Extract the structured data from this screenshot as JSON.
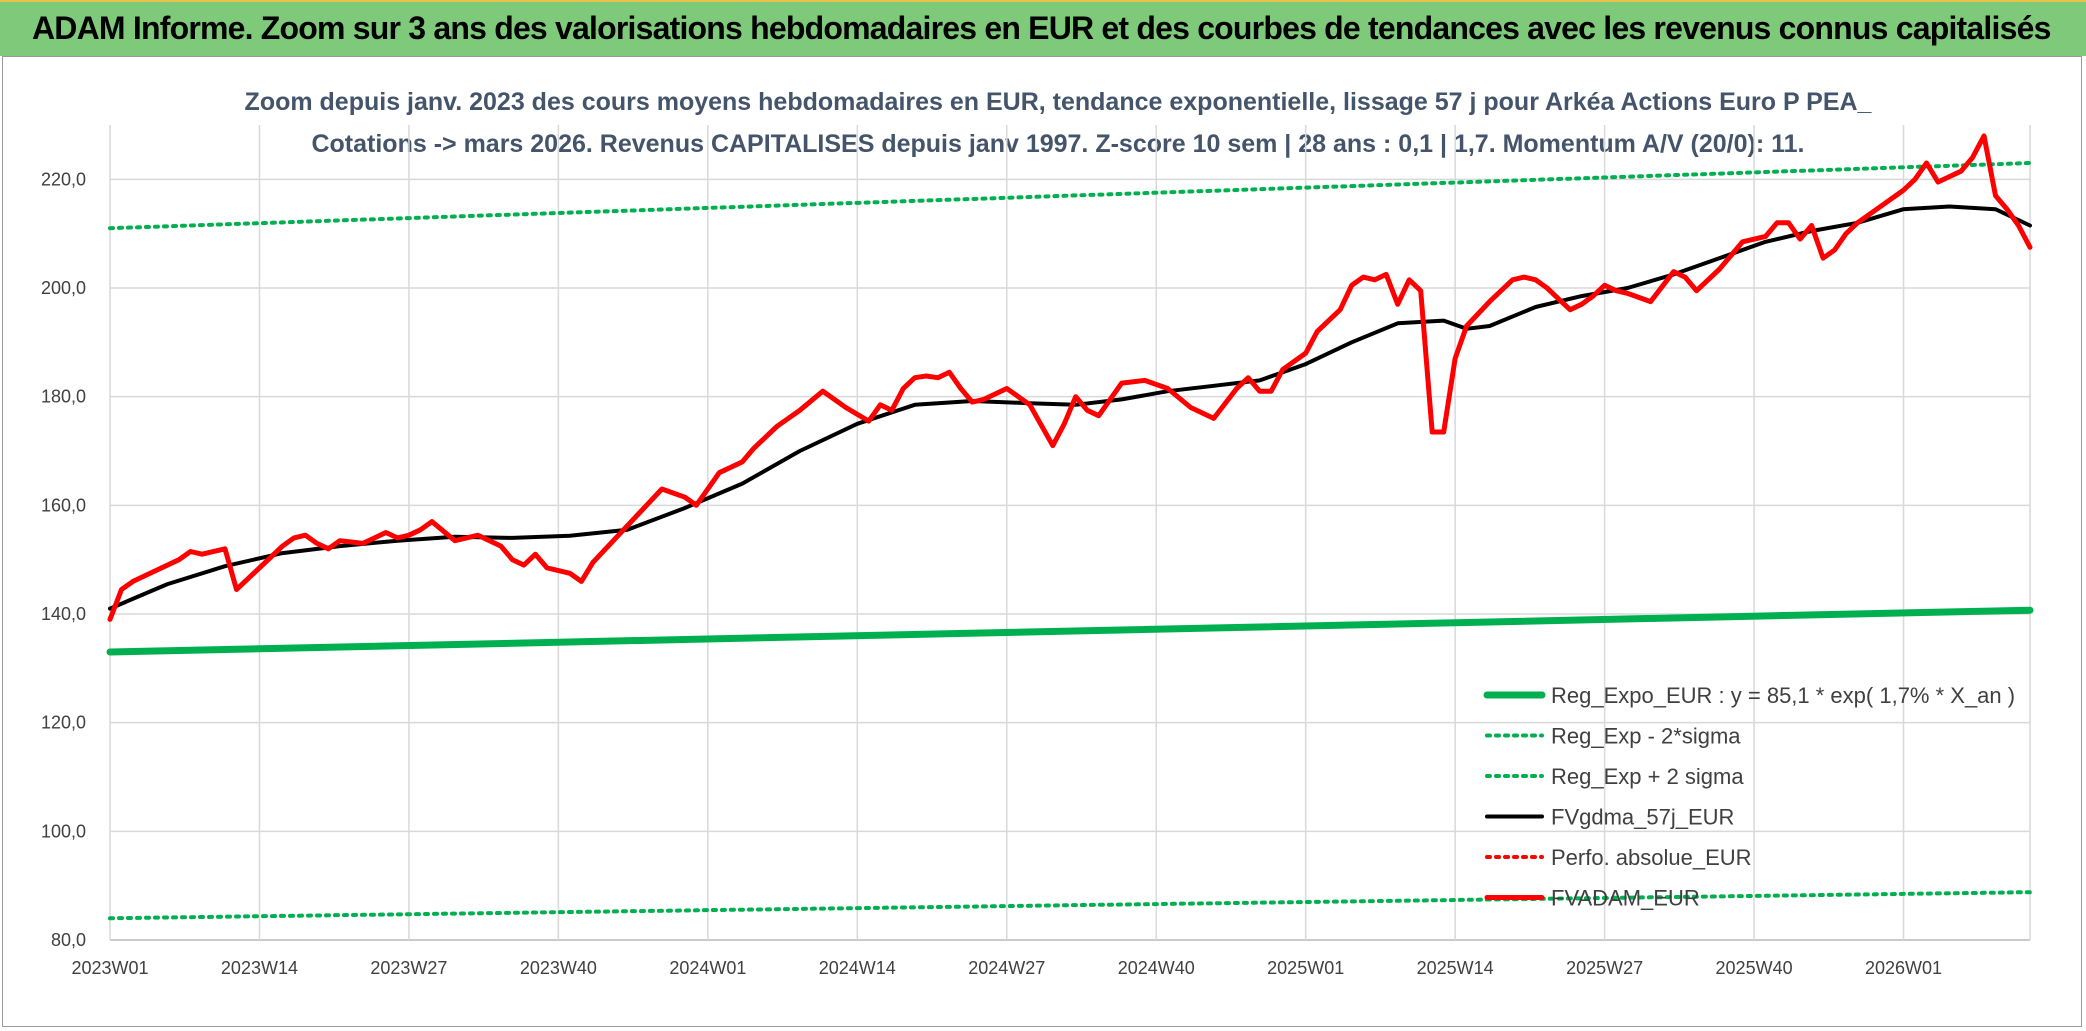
{
  "header": {
    "banner": "ADAM Informe. Zoom sur 3 ans des valorisations hebdomadaires en EUR et des courbes de tendances avec les revenus connus capitalisés"
  },
  "colors": {
    "banner_bg": "#7fc97a",
    "reg_green": "#00b050",
    "red": "#ff0000",
    "black": "#000000",
    "title_text": "#44546a"
  },
  "chart_data": {
    "type": "line",
    "title_line1": "Zoom depuis janv. 2023 des cours moyens hebdomadaires en EUR, tendance exponentielle, lissage 57 j pour Arkéa Actions Euro P PEA_",
    "title_line2": "Cotations -> mars 2026. Revenus CAPITALISES depuis janv 1997. Z-score 10 sem | 28 ans : 0,1 | 1,7. Momentum A/V (20/0): 11.",
    "ylim": [
      80,
      230
    ],
    "yticks": [
      80,
      100,
      120,
      140,
      160,
      180,
      200,
      220
    ],
    "ytick_labels": [
      "80,0",
      "100,0",
      "120,0",
      "140,0",
      "160,0",
      "180,0",
      "200,0",
      "220,0"
    ],
    "x_count": 168,
    "xtick_index": [
      0,
      13,
      26,
      39,
      52,
      65,
      78,
      91,
      104,
      117,
      130,
      143,
      156
    ],
    "xtick_labels": [
      "2023W01",
      "2023W14",
      "2023W27",
      "2023W40",
      "2024W01",
      "2024W14",
      "2024W27",
      "2024W40",
      "2025W01",
      "2025W14",
      "2025W27",
      "2025W40",
      "2026W01"
    ],
    "series": [
      {
        "name": "Reg_Expo_EUR : y = 85,1 * exp( 1,7% *  X_an )",
        "style": "solid-thick",
        "color": "#00b050",
        "x": [
          0,
          167
        ],
        "values": [
          133.0,
          140.7
        ]
      },
      {
        "name": "Reg_Exp - 2*sigma",
        "style": "dotted",
        "color": "#00b050",
        "x": [
          0,
          167
        ],
        "values": [
          84.0,
          88.8
        ]
      },
      {
        "name": "Reg_Exp + 2 sigma",
        "style": "dotted",
        "color": "#00b050",
        "x": [
          0,
          167
        ],
        "values": [
          211.0,
          223.0
        ]
      },
      {
        "name": "FVgdma_57j_EUR",
        "style": "solid",
        "color": "#000000",
        "x": [
          0,
          5,
          10,
          15,
          20,
          25,
          30,
          35,
          40,
          45,
          50,
          55,
          60,
          65,
          70,
          75,
          80,
          84,
          88,
          92,
          96,
          100,
          104,
          108,
          112,
          116,
          118,
          120,
          124,
          128,
          132,
          136,
          140,
          144,
          148,
          152,
          156,
          160,
          164,
          167
        ],
        "values": [
          141,
          145.5,
          148.8,
          151.2,
          152.5,
          153.5,
          154.2,
          154.0,
          154.4,
          155.5,
          159.5,
          164.0,
          170.0,
          175.0,
          178.5,
          179.2,
          178.8,
          178.5,
          179.5,
          181.0,
          182.0,
          183.0,
          186.0,
          190.0,
          193.5,
          194.0,
          192.5,
          193.0,
          196.5,
          198.5,
          200.0,
          202.5,
          205.5,
          208.5,
          210.5,
          212.0,
          214.5,
          215.0,
          214.5,
          211.5
        ]
      },
      {
        "name": "Perfo. absolue_EUR",
        "style": "dotted",
        "color": "#ff0000",
        "x": [],
        "values": []
      },
      {
        "name": "FVADAM_EUR",
        "style": "solid-thick",
        "color": "#ff0000",
        "x": [
          0,
          1,
          2,
          4,
          6,
          7,
          8,
          10,
          11,
          12,
          14,
          15,
          16,
          17,
          18,
          19,
          20,
          22,
          24,
          25,
          26,
          27,
          28,
          30,
          32,
          34,
          35,
          36,
          37,
          38,
          40,
          41,
          42,
          44,
          46,
          48,
          50,
          51,
          53,
          55,
          56,
          58,
          60,
          62,
          64,
          66,
          67,
          68,
          69,
          70,
          71,
          72,
          73,
          74,
          75,
          76,
          78,
          80,
          82,
          83,
          84,
          85,
          86,
          88,
          90,
          92,
          94,
          96,
          98,
          99,
          100,
          101,
          102,
          104,
          105,
          106,
          107,
          108,
          109,
          110,
          111,
          112,
          113,
          114,
          115,
          116,
          117,
          118,
          120,
          122,
          123,
          124,
          125,
          126,
          127,
          128,
          129,
          130,
          131,
          132,
          134,
          136,
          137,
          138,
          140,
          142,
          144,
          145,
          146,
          147,
          148,
          149,
          150,
          151,
          152,
          154,
          156,
          157,
          158,
          159,
          160,
          161,
          162,
          163,
          164,
          165,
          166,
          167
        ],
        "values": [
          139,
          144.5,
          146,
          148,
          150,
          151.5,
          151,
          152,
          144.5,
          146.5,
          150.5,
          152.5,
          154,
          154.5,
          153,
          152,
          153.5,
          153,
          155,
          154,
          154.5,
          155.5,
          157,
          153.5,
          154.5,
          152.5,
          150,
          149,
          151,
          148.5,
          147.5,
          146,
          149.5,
          154,
          158.5,
          163,
          161.5,
          160,
          166,
          168,
          170.5,
          174.5,
          177.5,
          181,
          178,
          175.5,
          178.5,
          177.5,
          181.5,
          183.5,
          183.8,
          183.5,
          184.5,
          181.5,
          179,
          179.5,
          181.5,
          178.5,
          171,
          175,
          180,
          177.5,
          176.5,
          182.5,
          183,
          181.5,
          178,
          176,
          181.5,
          183.5,
          181,
          181,
          185,
          188,
          192,
          194,
          196,
          200.5,
          202,
          201.5,
          202.5,
          197,
          201.5,
          199.5,
          173.5,
          173.5,
          187,
          193,
          197.5,
          201.5,
          202,
          201.5,
          200,
          198,
          196,
          197,
          198.5,
          200.5,
          199.5,
          199,
          197.5,
          203,
          202,
          199.5,
          203.5,
          208.5,
          209.5,
          212,
          212,
          209,
          211.5,
          205.5,
          207,
          210,
          212,
          215,
          218,
          220,
          223,
          219.5,
          220.5,
          221.5,
          224,
          228,
          217,
          214.5,
          211.5,
          207.5
        ]
      }
    ]
  }
}
